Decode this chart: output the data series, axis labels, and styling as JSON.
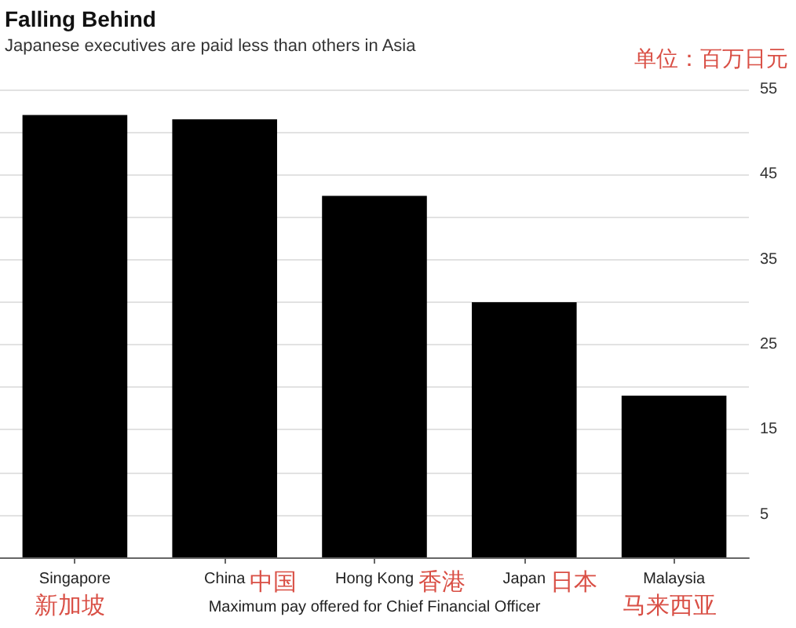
{
  "chart_data": {
    "type": "bar",
    "title": "Falling Behind",
    "subtitle": "Japanese executives are paid less than others in Asia",
    "xlabel": "Maximum pay offered for Chief Financial Officer",
    "ylabel": "单位：百万日元",
    "categories": [
      "Singapore",
      "China",
      "Hong Kong",
      "Japan",
      "Malaysia"
    ],
    "values": [
      52,
      51.5,
      42.5,
      30,
      19
    ],
    "color": "#000000",
    "ylim": [
      0,
      55
    ],
    "yticks": [
      {
        "value": 0,
        "label": null
      },
      5,
      {
        "value": 10,
        "label": null
      },
      15,
      {
        "value": 20,
        "label": null
      },
      25,
      {
        "value": 30,
        "label": null
      },
      35,
      {
        "value": 40,
        "label": null
      },
      45,
      {
        "value": 50,
        "label": null
      },
      55
    ],
    "grid": "y",
    "annotations": [
      "新加坡",
      "中国",
      "香港",
      "日本",
      "马来西亚"
    ]
  }
}
